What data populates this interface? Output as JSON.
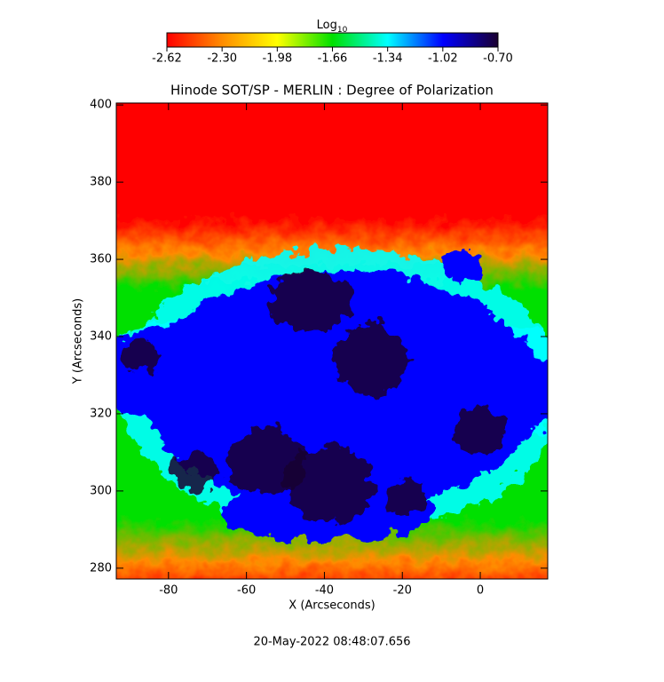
{
  "chart_data": {
    "type": "heatmap",
    "title": "Hinode SOT/SP - MERLIN : Degree of Polarization",
    "x_label": "X (Arcseconds)",
    "y_label": "Y (Arcseconds)",
    "footer": "20-May-2022 08:48:07.656",
    "colorbar_label": "Log",
    "colorbar_label_subscript": "10",
    "clim": [
      -2.62,
      -0.7
    ],
    "cticks": [
      -2.62,
      {
        "value": -2.3,
        "label": "-2.30"
      },
      -1.98,
      -1.66,
      -1.34,
      -1.02,
      {
        "value": -0.7,
        "label": "-0.70"
      }
    ],
    "colormap": [
      "#ff0000",
      "#ff8c00",
      "#ffff00",
      "#00e000",
      "#00ffff",
      "#0000ff",
      "#1a0030"
    ],
    "xlim": [
      -93.4,
      17.3
    ],
    "xticks": [
      -80,
      -60,
      -40,
      -20,
      0
    ],
    "ylim": [
      277.2,
      400.5
    ],
    "yticks": [
      280,
      300,
      320,
      340,
      360,
      380,
      400
    ]
  }
}
